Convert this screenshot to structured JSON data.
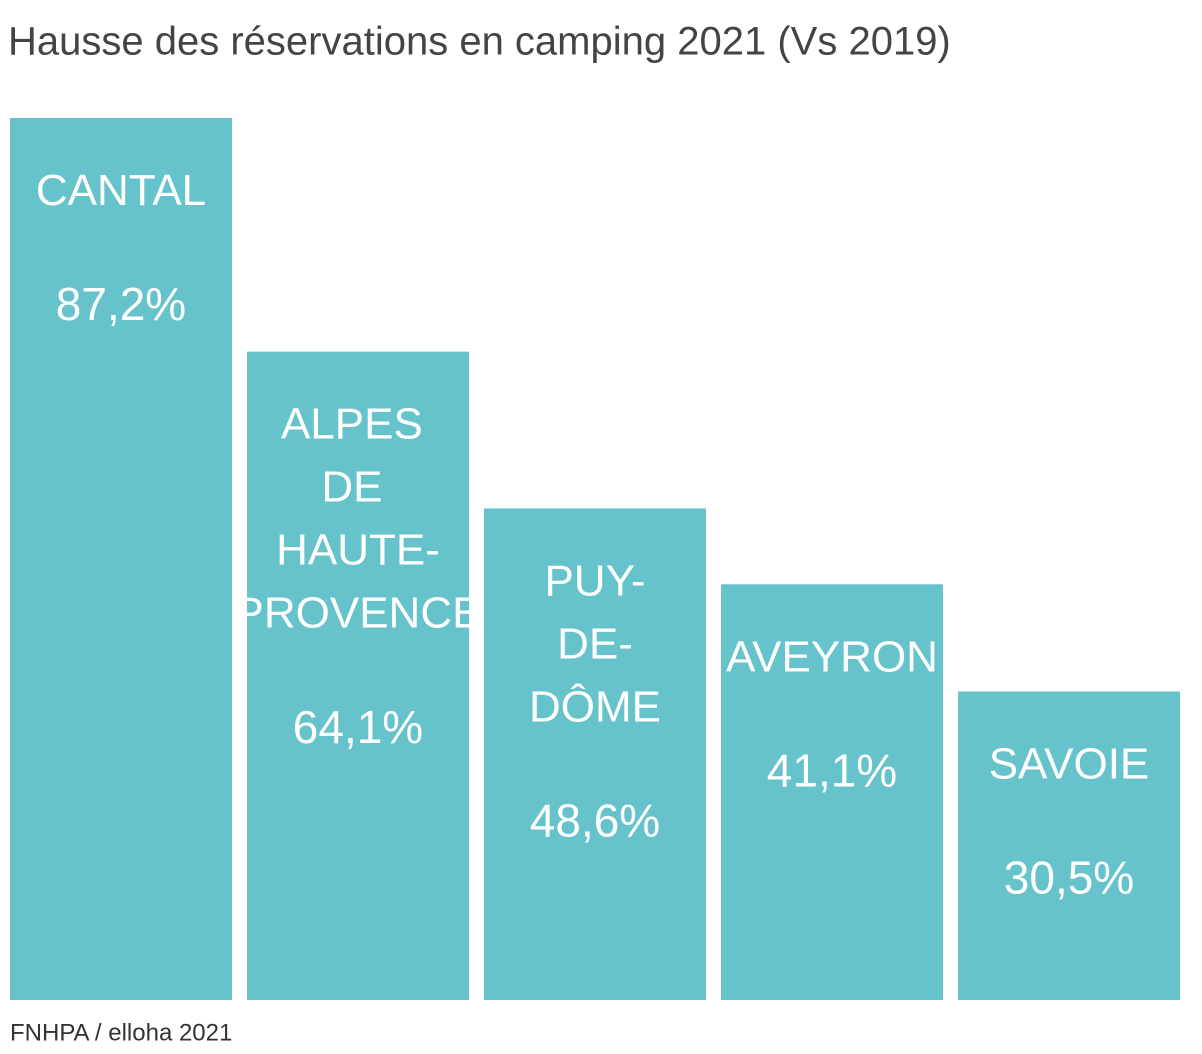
{
  "chart_data": {
    "type": "bar",
    "title": "Hausse des réservations en camping 2021 (Vs 2019)",
    "source": "FNHPA / elloha 2021",
    "categories": [
      "CANTAL",
      "ALPES DE HAUTE-PROVENCE",
      "PUY-DE-DÔME",
      "AVEYRON",
      "SAVOIE"
    ],
    "values": [
      87.2,
      64.1,
      48.6,
      41.1,
      30.5
    ],
    "value_labels": [
      "87,2%",
      "64,1%",
      "48,6%",
      "41,1%",
      "30,5%"
    ],
    "color": "#66c3cc"
  }
}
